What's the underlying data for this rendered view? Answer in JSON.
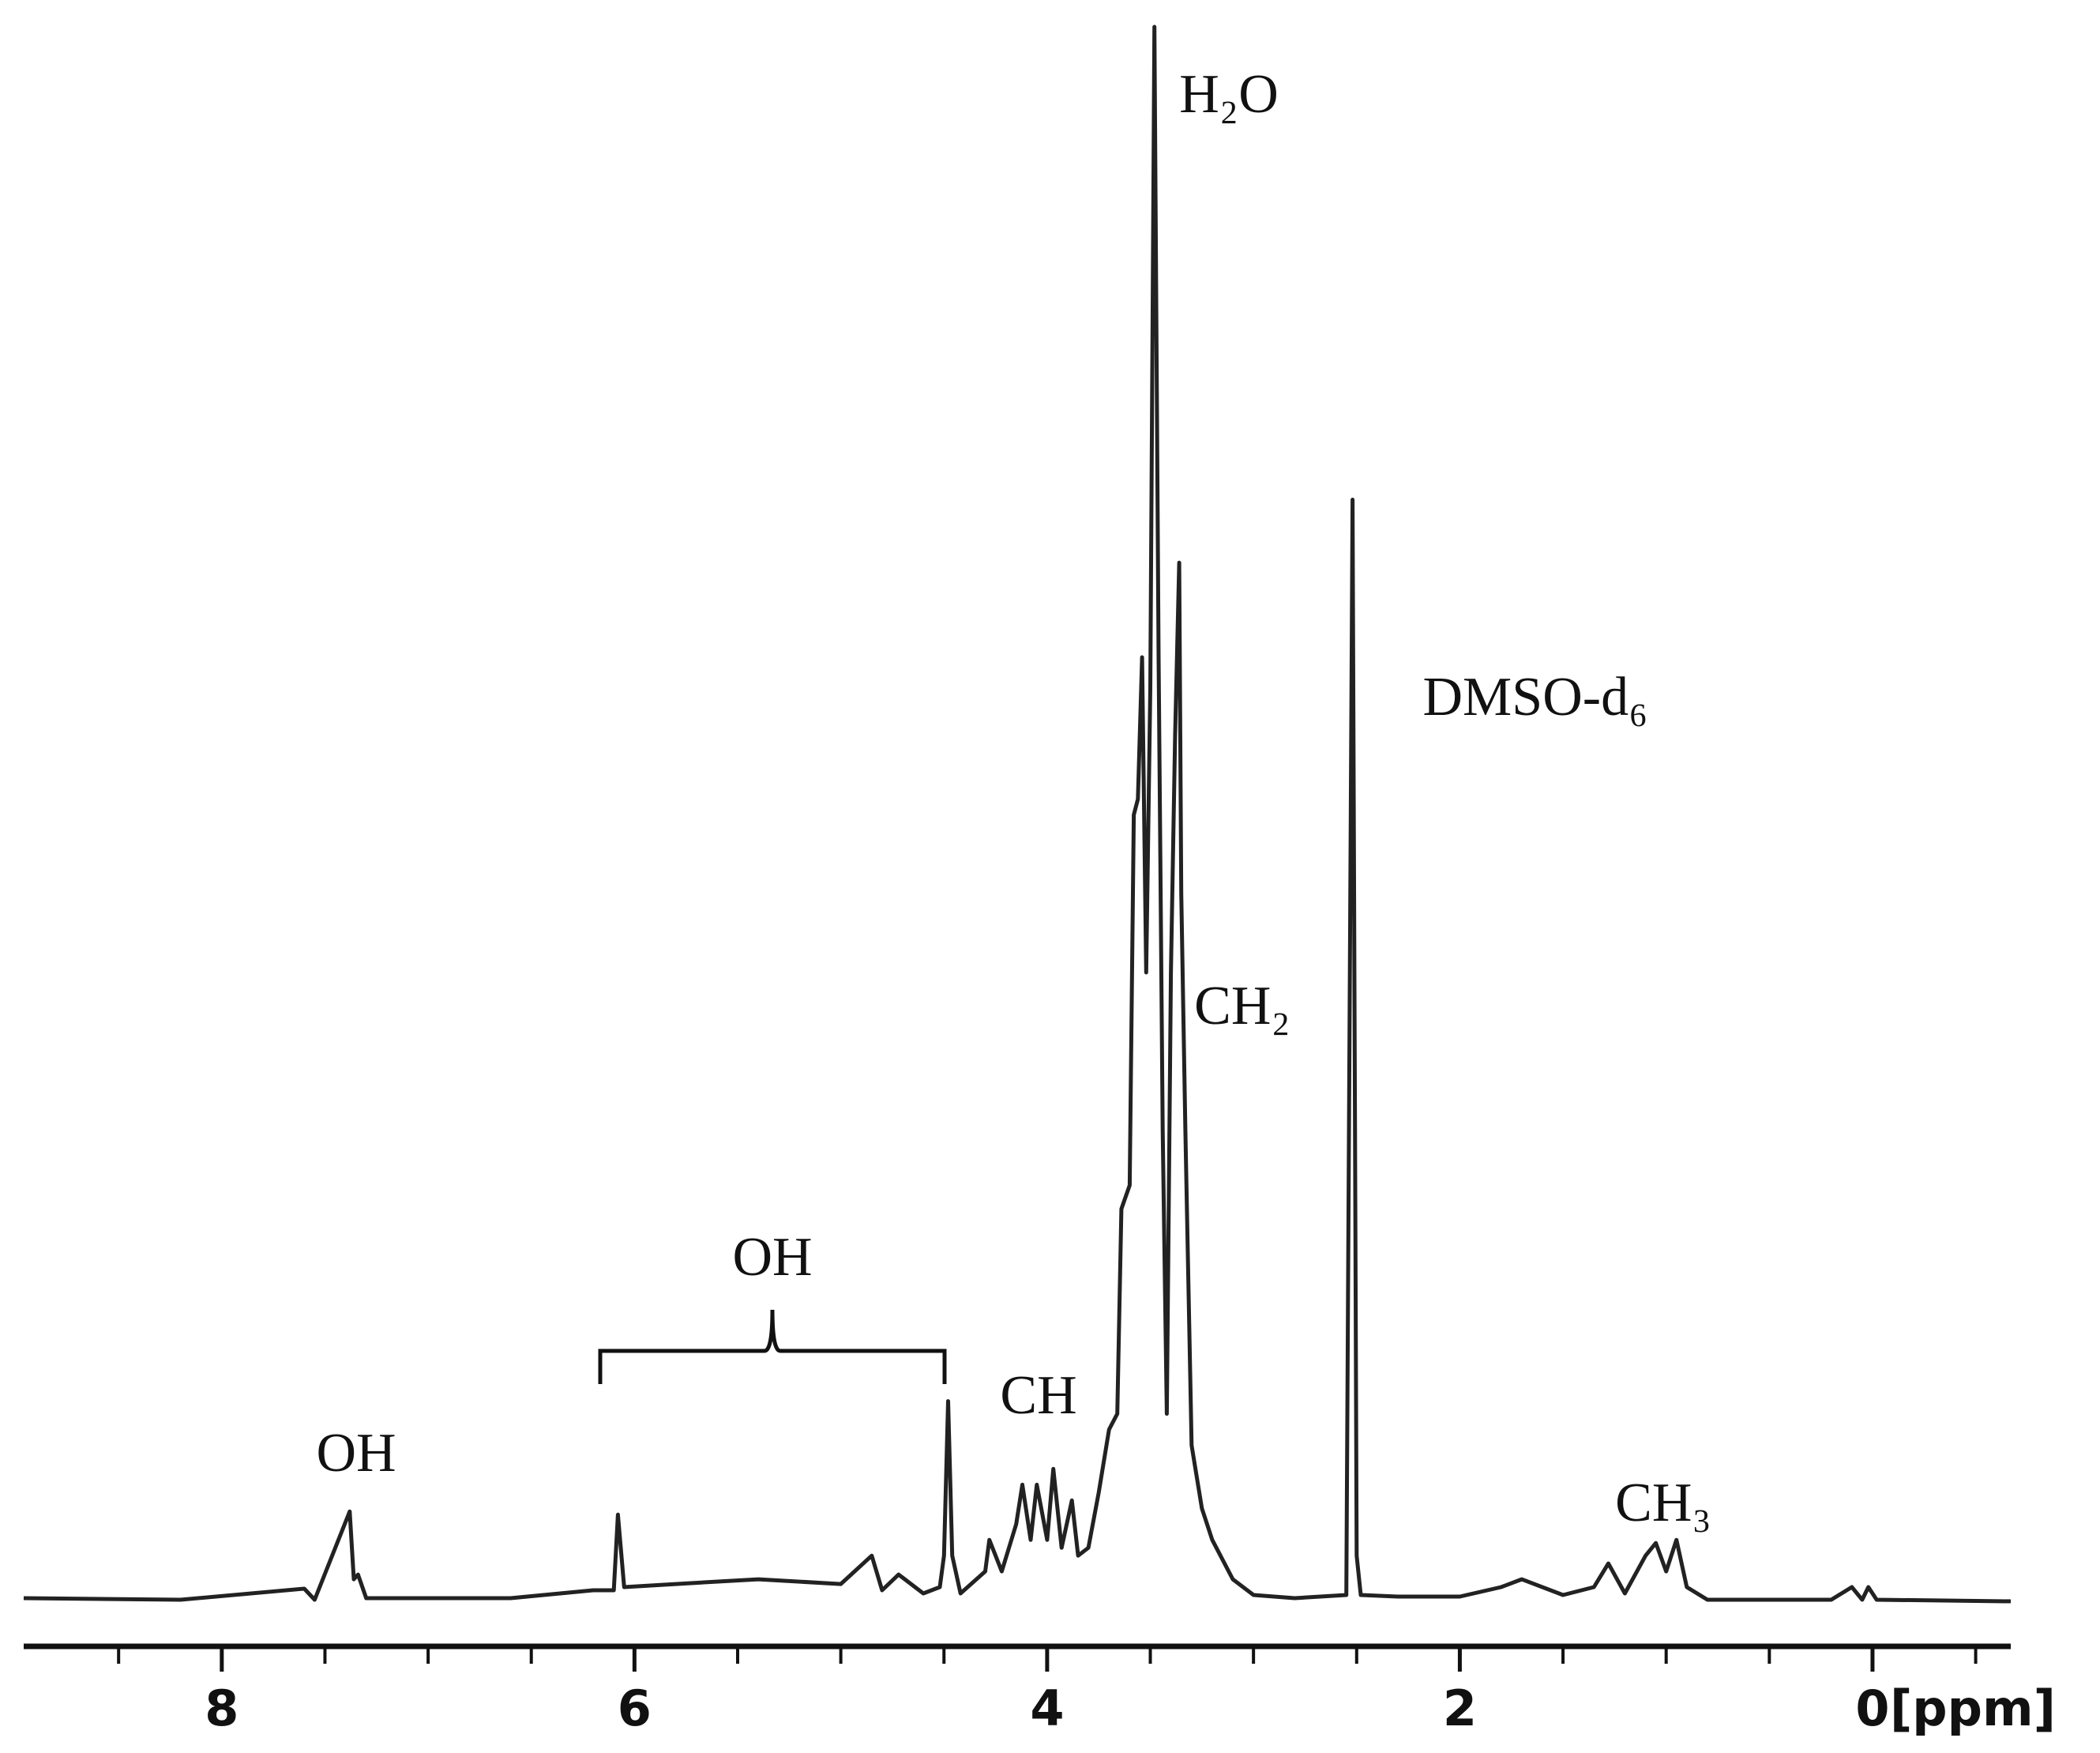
{
  "chart_data": {
    "type": "line",
    "x_label": "[ppm]",
    "xlim": [
      8.96,
      -0.67
    ],
    "ylim": [
      0,
      100
    ],
    "xticks": [
      8,
      6,
      4,
      2,
      0
    ],
    "xminorticks": [
      8.5,
      7.5,
      7,
      6.5,
      5.5,
      5,
      4.5,
      3.5,
      3,
      2.5,
      1.5,
      1,
      0.5,
      -0.5
    ],
    "color": "#222222",
    "annotations": [
      "H₂O",
      "DMSO-d₆",
      "CH₂",
      "CH",
      "OH",
      "OH",
      "CH₃"
    ],
    "x": [
      8.96,
      8.2,
      7.6,
      7.55,
      7.38,
      7.36,
      7.34,
      7.3,
      6.6,
      6.2,
      6.1,
      6.08,
      6.05,
      5.8,
      5.4,
      5.0,
      4.85,
      4.8,
      4.72,
      4.6,
      4.52,
      4.5,
      4.48,
      4.46,
      4.42,
      4.3,
      4.28,
      4.22,
      4.15,
      4.12,
      4.08,
      4.05,
      4.0,
      3.97,
      3.93,
      3.88,
      3.85,
      3.8,
      3.75,
      3.7,
      3.66,
      3.64,
      3.6,
      3.58,
      3.56,
      3.54,
      3.52,
      3.5,
      3.48,
      3.46,
      3.44,
      3.42,
      3.4,
      3.38,
      3.36,
      3.35,
      3.33,
      3.3,
      3.25,
      3.2,
      3.1,
      3.0,
      2.8,
      2.55,
      2.52,
      2.5,
      2.48,
      2.3,
      2.0,
      1.8,
      1.7,
      1.5,
      1.35,
      1.28,
      1.2,
      1.1,
      1.05,
      1.0,
      0.95,
      0.9,
      0.8,
      0.2,
      0.1,
      0.05,
      0.02,
      -0.02,
      -0.67
    ],
    "values": [
      0.3,
      0.2,
      0.9,
      0.2,
      5.8,
      1.5,
      1.8,
      0.3,
      0.3,
      0.8,
      0.8,
      5.6,
      1.0,
      1.2,
      1.5,
      1.2,
      3.0,
      0.8,
      1.8,
      0.6,
      1.0,
      3.0,
      12.8,
      3.0,
      0.6,
      2.0,
      4.0,
      2.0,
      5.0,
      7.5,
      4.0,
      7.5,
      4.0,
      8.5,
      3.5,
      6.5,
      3.0,
      3.5,
      7.0,
      11.0,
      12.0,
      25.0,
      26.5,
      50.0,
      51.0,
      60.0,
      40.0,
      58.0,
      100,
      60.0,
      30.0,
      12.0,
      40.0,
      55.0,
      66.0,
      45.0,
      30.0,
      10.0,
      6.0,
      4.0,
      1.5,
      0.5,
      0.3,
      0.5,
      70.0,
      3.0,
      0.5,
      0.4,
      0.4,
      1.0,
      1.5,
      0.5,
      1.0,
      2.5,
      0.6,
      3.0,
      3.8,
      2.0,
      4.0,
      1.0,
      0.2,
      0.2,
      1.0,
      0.2,
      1.0,
      0.2,
      0.1
    ]
  }
}
